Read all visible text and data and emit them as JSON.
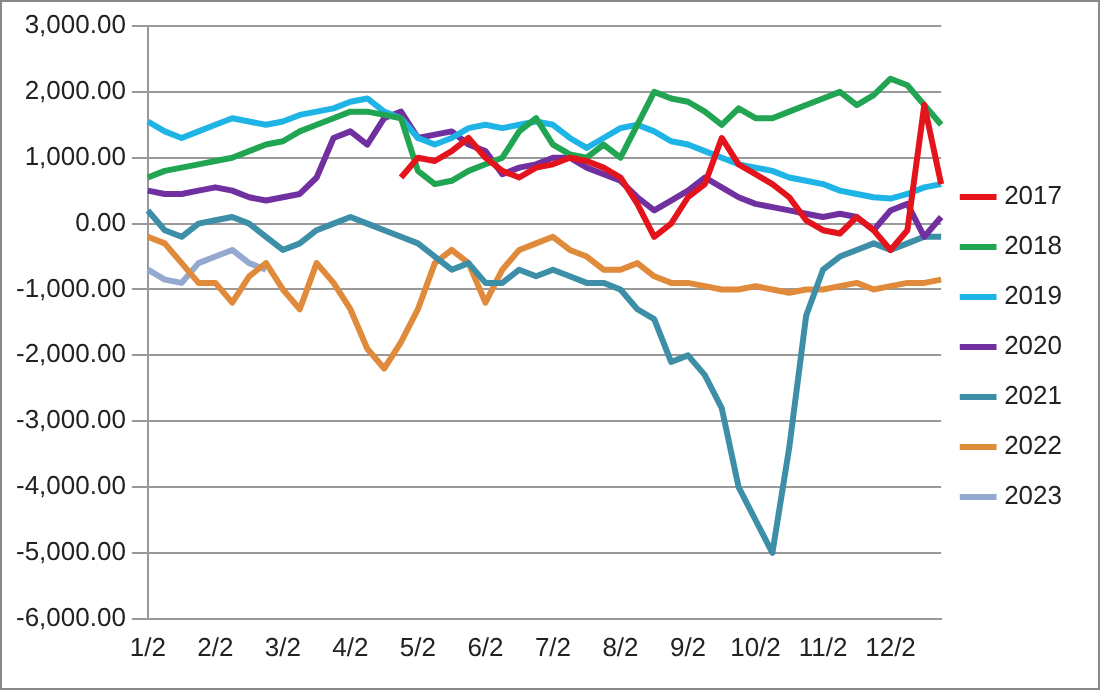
{
  "chart_data": {
    "type": "line",
    "categories": [
      "1/2",
      null,
      null,
      null,
      "2/2",
      null,
      null,
      null,
      "3/2",
      null,
      null,
      null,
      "4/2",
      null,
      null,
      null,
      "5/2",
      null,
      null,
      null,
      "6/2",
      null,
      null,
      null,
      "7/2",
      null,
      null,
      null,
      "8/2",
      null,
      null,
      null,
      "9/2",
      null,
      null,
      null,
      "10/2",
      null,
      null,
      null,
      "11/2",
      null,
      null,
      null,
      "12/2",
      null,
      null,
      null
    ],
    "series": [
      {
        "name": "2017",
        "color": "#e3141c",
        "values": [
          null,
          null,
          null,
          null,
          null,
          null,
          null,
          null,
          null,
          null,
          null,
          null,
          null,
          null,
          null,
          700,
          1000,
          950,
          1100,
          1300,
          1000,
          800,
          700,
          850,
          900,
          1000,
          950,
          850,
          700,
          300,
          -200,
          0,
          400,
          600,
          1300,
          900,
          750,
          600,
          400,
          50,
          -100,
          -150,
          100,
          -100,
          -400,
          -100,
          1800,
          600
        ]
      },
      {
        "name": "2018",
        "color": "#22a552",
        "values": [
          700,
          800,
          850,
          900,
          950,
          1000,
          1100,
          1200,
          1250,
          1400,
          1500,
          1600,
          1700,
          1700,
          1650,
          1600,
          800,
          600,
          650,
          800,
          900,
          1000,
          1400,
          1600,
          1200,
          1050,
          1000,
          1200,
          1000,
          1500,
          2000,
          1900,
          1850,
          1700,
          1500,
          1750,
          1600,
          1600,
          1700,
          1800,
          1900,
          2000,
          1800,
          1950,
          2200,
          2100,
          1800,
          1500
        ]
      },
      {
        "name": "2019",
        "color": "#1fb4e6",
        "values": [
          1550,
          1400,
          1300,
          1400,
          1500,
          1600,
          1550,
          1500,
          1550,
          1650,
          1700,
          1750,
          1850,
          1900,
          1700,
          1600,
          1300,
          1200,
          1300,
          1450,
          1500,
          1450,
          1500,
          1550,
          1500,
          1300,
          1150,
          1300,
          1450,
          1500,
          1400,
          1250,
          1200,
          1100,
          1000,
          900,
          850,
          800,
          700,
          650,
          600,
          500,
          450,
          400,
          380,
          450,
          550,
          600
        ]
      },
      {
        "name": "2020",
        "color": "#7030a0",
        "values": [
          500,
          450,
          450,
          500,
          550,
          500,
          400,
          350,
          400,
          450,
          700,
          1300,
          1400,
          1200,
          1600,
          1700,
          1300,
          1350,
          1400,
          1200,
          1100,
          750,
          850,
          900,
          1000,
          1000,
          850,
          750,
          650,
          400,
          200,
          350,
          500,
          700,
          550,
          400,
          300,
          250,
          200,
          150,
          100,
          150,
          100,
          -100,
          200,
          300,
          -200,
          100
        ]
      },
      {
        "name": "2021",
        "color": "#3d8fa8",
        "values": [
          200,
          -100,
          -200,
          0,
          50,
          100,
          0,
          -200,
          -400,
          -300,
          -100,
          0,
          100,
          0,
          -100,
          -200,
          -300,
          -500,
          -700,
          -600,
          -900,
          -900,
          -700,
          -800,
          -700,
          -800,
          -900,
          -900,
          -1000,
          -1300,
          -1450,
          -2100,
          -2000,
          -2300,
          -2800,
          -4000,
          -4500,
          -5000,
          -3400,
          -1400,
          -700,
          -500,
          -400,
          -300,
          -400,
          -300,
          -200,
          -200
        ]
      },
      {
        "name": "2022",
        "color": "#e08a3c",
        "values": [
          -200,
          -300,
          -600,
          -900,
          -900,
          -1200,
          -800,
          -600,
          -1000,
          -1300,
          -600,
          -900,
          -1300,
          -1900,
          -2200,
          -1800,
          -1300,
          -600,
          -400,
          -600,
          -1200,
          -700,
          -400,
          -300,
          -200,
          -400,
          -500,
          -700,
          -700,
          -600,
          -800,
          -900,
          -900,
          -950,
          -1000,
          -1000,
          -950,
          -1000,
          -1050,
          -1000,
          -1000,
          -950,
          -900,
          -1000,
          -950,
          -900,
          -900,
          -850
        ]
      },
      {
        "name": "2023",
        "color": "#93a9cf",
        "values": [
          -700,
          -850,
          -900,
          -600,
          -500,
          -400,
          -600,
          -700,
          null,
          null,
          null,
          null,
          null,
          null,
          null,
          null,
          null,
          null,
          null,
          null,
          null,
          null,
          null,
          null,
          null,
          null,
          null,
          null,
          null,
          null,
          null,
          null,
          null,
          null,
          null,
          null,
          null,
          null,
          null,
          null,
          null,
          null,
          null,
          null,
          null,
          null,
          null,
          null
        ]
      }
    ],
    "ylim": [
      -6000,
      3000
    ],
    "yticks": [
      {
        "value": -6000,
        "label": "-6,000.00"
      },
      {
        "value": -5000,
        "label": "-5,000.00"
      },
      {
        "value": -4000,
        "label": "-4,000.00"
      },
      {
        "value": -3000,
        "label": "-3,000.00"
      },
      {
        "value": -2000,
        "label": "-2,000.00"
      },
      {
        "value": -1000,
        "label": "-1,000.00"
      },
      {
        "value": 0,
        "label": "0.00"
      },
      {
        "value": 1000,
        "label": "1,000.00"
      },
      {
        "value": 2000,
        "label": "2,000.00"
      },
      {
        "value": 3000,
        "label": "3,000.00"
      }
    ],
    "grid": "y",
    "legend": "right",
    "marker": "none",
    "line_style": "solid"
  }
}
